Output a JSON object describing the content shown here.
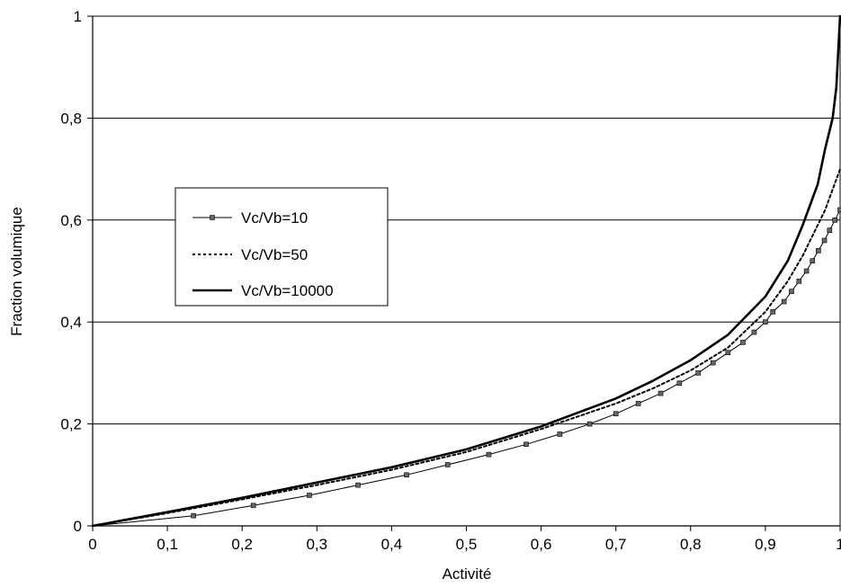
{
  "chart_data": {
    "type": "line",
    "title": "",
    "xlabel": "Activité",
    "ylabel": "Fraction volumique",
    "xlim": [
      0,
      1
    ],
    "ylim": [
      0,
      1
    ],
    "x_ticks": [
      "0",
      "0,1",
      "0,2",
      "0,3",
      "0,4",
      "0,5",
      "0,6",
      "0,7",
      "0,8",
      "0,9",
      "1"
    ],
    "y_ticks": [
      "0",
      "0,2",
      "0,4",
      "0,6",
      "0,8",
      "1"
    ],
    "grid": "horizontal",
    "legend_position": "left",
    "series": [
      {
        "name": "Vc/Vb=10",
        "style": "thin line with square markers",
        "x": [
          0,
          0.135,
          0.215,
          0.29,
          0.355,
          0.42,
          0.475,
          0.53,
          0.58,
          0.625,
          0.665,
          0.7,
          0.73,
          0.76,
          0.785,
          0.81,
          0.83,
          0.85,
          0.87,
          0.885,
          0.9,
          0.91,
          0.925,
          0.935,
          0.945,
          0.955,
          0.963,
          0.971,
          0.979,
          0.986,
          0.993,
          1.0
        ],
        "y": [
          0,
          0.02,
          0.04,
          0.06,
          0.08,
          0.1,
          0.12,
          0.14,
          0.16,
          0.18,
          0.2,
          0.22,
          0.24,
          0.26,
          0.28,
          0.3,
          0.32,
          0.34,
          0.36,
          0.38,
          0.4,
          0.42,
          0.44,
          0.46,
          0.48,
          0.5,
          0.52,
          0.54,
          0.56,
          0.58,
          0.6,
          0.62
        ]
      },
      {
        "name": "Vc/Vb=50",
        "style": "dotted",
        "x": [
          0,
          0.1,
          0.2,
          0.3,
          0.4,
          0.5,
          0.6,
          0.7,
          0.75,
          0.8,
          0.85,
          0.9,
          0.93,
          0.95,
          0.97,
          0.98,
          0.99,
          1.0
        ],
        "y": [
          0,
          0.025,
          0.052,
          0.08,
          0.11,
          0.145,
          0.19,
          0.24,
          0.27,
          0.305,
          0.35,
          0.42,
          0.48,
          0.53,
          0.59,
          0.62,
          0.66,
          0.7
        ]
      },
      {
        "name": "Vc/Vb=10000",
        "style": "solid thick",
        "x": [
          0,
          0.1,
          0.2,
          0.3,
          0.4,
          0.5,
          0.6,
          0.7,
          0.75,
          0.8,
          0.85,
          0.9,
          0.93,
          0.95,
          0.97,
          0.98,
          0.99,
          0.995,
          1.0
        ],
        "y": [
          0,
          0.027,
          0.055,
          0.085,
          0.115,
          0.15,
          0.195,
          0.25,
          0.285,
          0.325,
          0.375,
          0.45,
          0.52,
          0.59,
          0.67,
          0.74,
          0.8,
          0.86,
          1.0
        ]
      }
    ]
  }
}
